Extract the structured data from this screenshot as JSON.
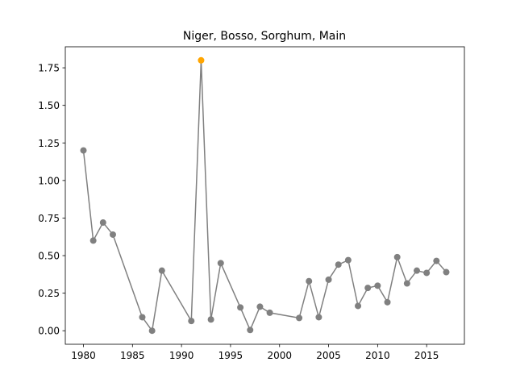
{
  "chart_data": {
    "type": "line",
    "title": "Niger, Bosso, Sorghum, Main",
    "x": [
      1980,
      1981,
      1982,
      1983,
      1986,
      1987,
      1988,
      1991,
      1992,
      1993,
      1994,
      1996,
      1997,
      1998,
      1999,
      2002,
      2003,
      2004,
      2005,
      2006,
      2007,
      2008,
      2009,
      2010,
      2011,
      2012,
      2013,
      2014,
      2015,
      2016,
      2017
    ],
    "series": [
      {
        "color": "#808080",
        "values": [
          1.2,
          0.6,
          0.72,
          0.64,
          0.09,
          0.0,
          0.4,
          0.065,
          1.8,
          0.075,
          0.45,
          0.155,
          0.005,
          0.16,
          0.12,
          0.085,
          0.33,
          0.09,
          0.34,
          0.44,
          0.47,
          0.165,
          0.285,
          0.3,
          0.19,
          0.49,
          0.315,
          0.4,
          0.385,
          0.465,
          0.39
        ],
        "marker_colors": [
          "#808080",
          "#808080",
          "#808080",
          "#808080",
          "#808080",
          "#808080",
          "#808080",
          "#808080",
          "#ffa500",
          "#808080",
          "#808080",
          "#808080",
          "#808080",
          "#808080",
          "#808080",
          "#808080",
          "#808080",
          "#808080",
          "#808080",
          "#808080",
          "#808080",
          "#808080",
          "#808080",
          "#808080",
          "#808080",
          "#808080",
          "#808080",
          "#808080",
          "#808080",
          "#808080",
          "#808080"
        ]
      }
    ],
    "xlim": [
      1978.15,
      2018.85
    ],
    "xticks": [
      1980,
      1985,
      1990,
      1995,
      2000,
      2005,
      2010,
      2015
    ],
    "ylim": [
      -0.09,
      1.89
    ],
    "yticks": [
      {
        "value": 0,
        "label": "0.00"
      },
      {
        "value": 0.25,
        "label": "0.25"
      },
      {
        "value": 0.5,
        "label": "0.50"
      },
      {
        "value": 0.75,
        "label": "0.75"
      },
      {
        "value": 1,
        "label": "1.00"
      },
      {
        "value": 1.25,
        "label": "1.25"
      },
      {
        "value": 1.5,
        "label": "1.50"
      },
      {
        "value": 1.75,
        "label": "1.75"
      }
    ],
    "grid": false
  }
}
